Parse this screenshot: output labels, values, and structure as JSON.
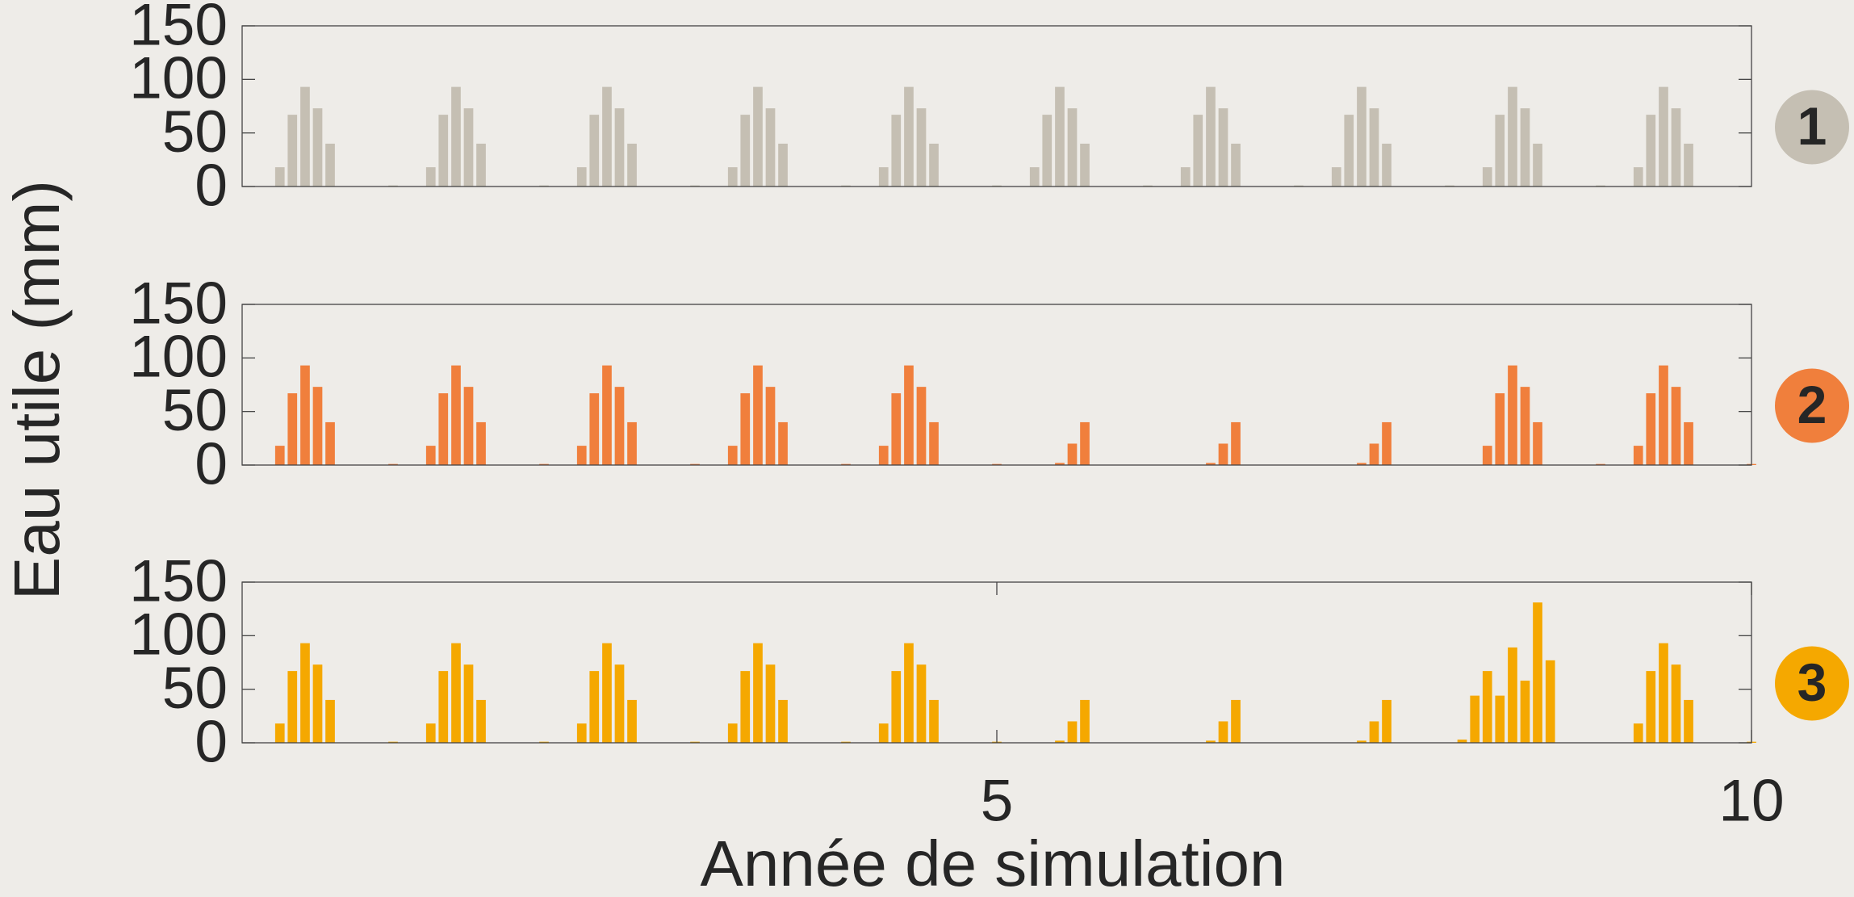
{
  "chart_data": [
    {
      "type": "bar",
      "title": "1",
      "ylabel": "Eau utile (mm)",
      "color": "#c5bfb3",
      "badge_color": "#c5bfb3",
      "xlim": [
        0,
        10
      ],
      "ylim": [
        0,
        150
      ],
      "yticks": [
        0,
        50,
        100,
        150
      ],
      "x": [
        0.25,
        0.333,
        0.417,
        0.5,
        0.583,
        1,
        1.25,
        1.333,
        1.417,
        1.5,
        1.583,
        2,
        2.25,
        2.333,
        2.417,
        2.5,
        2.583,
        3,
        3.25,
        3.333,
        3.417,
        3.5,
        3.583,
        4,
        4.25,
        4.333,
        4.417,
        4.5,
        4.583,
        5,
        5.25,
        5.333,
        5.417,
        5.5,
        5.583,
        6,
        6.25,
        6.333,
        6.417,
        6.5,
        6.583,
        7,
        7.25,
        7.333,
        7.417,
        7.5,
        7.583,
        8,
        8.25,
        8.333,
        8.417,
        8.5,
        8.583,
        9,
        9.25,
        9.333,
        9.417,
        9.5,
        9.583
      ],
      "values": [
        18,
        67,
        93,
        73,
        40,
        1,
        18,
        67,
        93,
        73,
        40,
        1,
        18,
        67,
        93,
        73,
        40,
        1,
        18,
        67,
        93,
        73,
        40,
        1,
        18,
        67,
        93,
        73,
        40,
        1,
        18,
        67,
        93,
        73,
        40,
        1,
        18,
        67,
        93,
        73,
        40,
        1,
        18,
        67,
        93,
        73,
        40,
        1,
        18,
        67,
        93,
        73,
        40,
        1,
        18,
        67,
        93,
        73,
        40
      ]
    },
    {
      "type": "bar",
      "title": "2",
      "color": "#f07f3c",
      "badge_color": "#f07f3c",
      "xlim": [
        0,
        10
      ],
      "ylim": [
        0,
        150
      ],
      "yticks": [
        0,
        50,
        100,
        150
      ],
      "x": [
        0.25,
        0.333,
        0.417,
        0.5,
        0.583,
        1,
        1.25,
        1.333,
        1.417,
        1.5,
        1.583,
        2,
        2.25,
        2.333,
        2.417,
        2.5,
        2.583,
        3,
        3.25,
        3.333,
        3.417,
        3.5,
        3.583,
        4,
        4.25,
        4.333,
        4.417,
        4.5,
        4.583,
        5,
        5.417,
        5.5,
        5.583,
        6.417,
        6.5,
        6.583,
        7.417,
        7.5,
        7.583,
        8.25,
        8.333,
        8.417,
        8.5,
        8.583,
        9,
        9.25,
        9.333,
        9.417,
        9.5,
        9.583,
        10
      ],
      "values": [
        18,
        67,
        93,
        73,
        40,
        1,
        18,
        67,
        93,
        73,
        40,
        1,
        18,
        67,
        93,
        73,
        40,
        1,
        18,
        67,
        93,
        73,
        40,
        1,
        18,
        67,
        93,
        73,
        40,
        1,
        2,
        20,
        40,
        2,
        20,
        40,
        2,
        20,
        40,
        18,
        67,
        93,
        73,
        40,
        1,
        18,
        67,
        93,
        73,
        40,
        1
      ]
    },
    {
      "type": "bar",
      "title": "3",
      "xlabel": "Année de simulation",
      "color": "#f5a800",
      "badge_color": "#f5a800",
      "xlim": [
        0,
        10
      ],
      "xticks": [
        5,
        10
      ],
      "ylim": [
        0,
        150
      ],
      "yticks": [
        0,
        50,
        100,
        150
      ],
      "x": [
        0.25,
        0.333,
        0.417,
        0.5,
        0.583,
        1,
        1.25,
        1.333,
        1.417,
        1.5,
        1.583,
        2,
        2.25,
        2.333,
        2.417,
        2.5,
        2.583,
        3,
        3.25,
        3.333,
        3.417,
        3.5,
        3.583,
        4,
        4.25,
        4.333,
        4.417,
        4.5,
        4.583,
        5,
        5.417,
        5.5,
        5.583,
        6.417,
        6.5,
        6.583,
        7.417,
        7.5,
        7.583,
        8.083,
        8.167,
        8.25,
        8.333,
        8.417,
        8.5,
        8.583,
        8.667,
        9.25,
        9.333,
        9.417,
        9.5,
        9.583,
        10
      ],
      "values": [
        18,
        67,
        93,
        73,
        40,
        1,
        18,
        67,
        93,
        73,
        40,
        1,
        18,
        67,
        93,
        73,
        40,
        1,
        18,
        67,
        93,
        73,
        40,
        1,
        18,
        67,
        93,
        73,
        40,
        1,
        2,
        20,
        40,
        2,
        20,
        40,
        2,
        20,
        40,
        3,
        44,
        67,
        44,
        89,
        58,
        131,
        77,
        18,
        67,
        93,
        73,
        40,
        1
      ]
    }
  ]
}
